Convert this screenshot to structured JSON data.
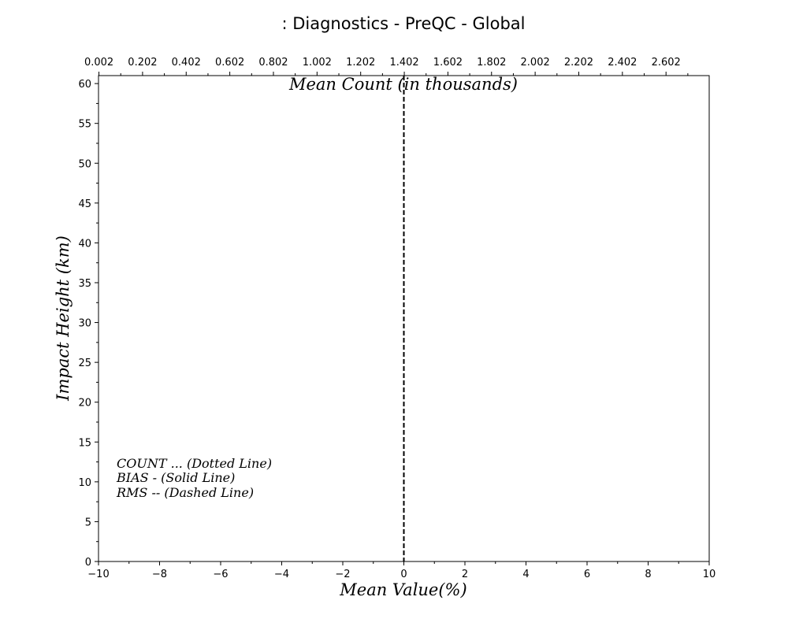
{
  "chart_data": {
    "type": "line",
    "title": ": Diagnostics - PreQC - Global",
    "xlabel": "Mean Value(%)",
    "ylabel": "Impact Height (km)",
    "top_xlabel": "Mean Count (in thousands)",
    "xlim": [
      -10,
      10
    ],
    "ylim": [
      0,
      61
    ],
    "top_xlim": [
      0,
      2.8
    ],
    "x_ticks": [
      -10,
      -8,
      -6,
      -4,
      -2,
      0,
      2,
      4,
      6,
      8,
      10
    ],
    "x_tick_labels": [
      "−10",
      "−8",
      "−6",
      "−4",
      "−2",
      "0",
      "2",
      "4",
      "6",
      "8",
      "10"
    ],
    "x_minor_ticks": [
      -9,
      -7,
      -5,
      -3,
      -1,
      1,
      3,
      5,
      7,
      9
    ],
    "y_ticks": [
      0,
      5,
      10,
      15,
      20,
      25,
      30,
      35,
      40,
      45,
      50,
      55,
      60
    ],
    "y_tick_labels": [
      "0",
      "5",
      "10",
      "15",
      "20",
      "25",
      "30",
      "35",
      "40",
      "45",
      "50",
      "55",
      "60"
    ],
    "y_minor_ticks": [
      2.5,
      7.5,
      12.5,
      17.5,
      22.5,
      27.5,
      32.5,
      37.5,
      42.5,
      47.5,
      52.5,
      57.5
    ],
    "top_ticks": [
      0.002,
      0.202,
      0.402,
      0.602,
      0.802,
      1.002,
      1.202,
      1.402,
      1.602,
      1.802,
      2.002,
      2.202,
      2.402,
      2.602
    ],
    "top_tick_labels": [
      "0.002",
      "0.202",
      "0.402",
      "0.602",
      "0.802",
      "1.002",
      "1.202",
      "1.402",
      "1.602",
      "1.802",
      "2.002",
      "2.202",
      "2.402",
      "2.602"
    ],
    "top_minor_ticks": [
      0.102,
      0.302,
      0.502,
      0.702,
      0.902,
      1.102,
      1.302,
      1.502,
      1.702,
      1.902,
      2.102,
      2.302,
      2.502,
      2.702
    ],
    "reference_line": {
      "x": 0,
      "style": "dashed"
    },
    "series": [],
    "legend_lines": [
      "COUNT ... (Dotted Line)",
      "BIAS - (Solid Line)",
      "RMS -- (Dashed Line)"
    ],
    "legend_placement": "lower-left",
    "grid": false
  }
}
